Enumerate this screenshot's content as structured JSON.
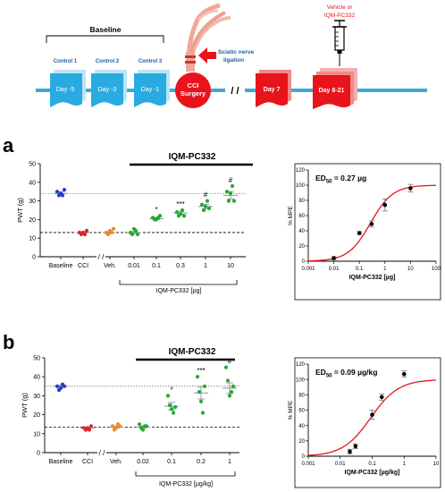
{
  "timeline": {
    "baseline_label": "Baseline",
    "controls": [
      "Control 1",
      "Control 2",
      "Control 3"
    ],
    "days": [
      "Day -5",
      "Day -3",
      "Day -1"
    ],
    "cci_label_1": "CCI",
    "cci_label_2": "Surgery",
    "nerve_label_1": "Sciatic nerve",
    "nerve_label_2": "ligation",
    "break_label": "/ /",
    "day7": "Day 7",
    "day821": "Day 8-21",
    "vehicle_label_1": "Vehicle or",
    "vehicle_label_2": "IQM-PC332",
    "colors": {
      "blue": "#29abe2",
      "red": "#e8141c",
      "line": "#3fa9d6",
      "text_blue": "#1f5fa0"
    }
  },
  "panels": [
    {
      "letter": "a",
      "drug_label": "IQM-PC332",
      "xgroup_label": "IQM-PC332 [µg]"
    },
    {
      "letter": "b",
      "drug_label": "IQM-PC332",
      "xgroup_label": "IQM-PC332 [µg/kg]"
    }
  ],
  "chart_data": [
    {
      "type": "scatter",
      "panel": "a",
      "ylabel": "PWT (g)",
      "ylim": [
        0,
        50
      ],
      "yticks": [
        "0",
        "10",
        "20",
        "30",
        "40",
        "50"
      ],
      "categories": [
        "Baseline",
        "CCI",
        "Veh.",
        "0.01",
        "0.1",
        "0.3",
        "1",
        "10"
      ],
      "axis_break_label": "/ /",
      "ref_lines": {
        "baseline_dotted": 34,
        "cci_dashed": 13
      },
      "colors": [
        "#1f3fd1",
        "#d9262b",
        "#f08a24",
        "#22aa33",
        "#22aa33",
        "#22aa33",
        "#22aa33",
        "#22aa33"
      ],
      "points": [
        [
          35,
          33,
          34,
          33,
          36
        ],
        [
          13,
          12,
          13,
          12,
          14
        ],
        [
          13,
          12,
          14,
          13,
          15
        ],
        [
          13,
          12,
          15,
          14,
          12
        ],
        [
          21,
          20,
          20,
          21,
          22
        ],
        [
          24,
          22,
          23,
          25,
          22
        ],
        [
          28,
          25,
          27,
          30,
          26
        ],
        [
          35,
          30,
          34,
          38,
          30
        ]
      ],
      "means": [
        34,
        13,
        13,
        13,
        20.5,
        23.5,
        27,
        33
      ],
      "errors": [
        1,
        0.5,
        0.5,
        0.6,
        0.6,
        0.8,
        1.2,
        2
      ],
      "significance": [
        "",
        "",
        "",
        "",
        "*",
        "***",
        "#",
        "#"
      ]
    },
    {
      "type": "line",
      "panel": "a",
      "annotation_prefix": "ED",
      "annotation_sub": "50",
      "annotation_value": " = 0.27 µg",
      "xlabel": "IQM-PC332 [µg]",
      "ylabel": "% MPE",
      "xscale": "log",
      "xlim": [
        0.001,
        100
      ],
      "xticks": [
        "0.001",
        "0.01",
        "0.1",
        "1",
        "10",
        "100"
      ],
      "ylim": [
        0,
        120
      ],
      "yticks": [
        "0",
        "20",
        "40",
        "60",
        "80",
        "100",
        "120"
      ],
      "ed50": 0.27,
      "top": 100,
      "x": [
        0.01,
        0.1,
        0.3,
        1,
        10
      ],
      "y": [
        4,
        37,
        49,
        74,
        96
      ],
      "err": [
        2,
        2,
        4,
        8,
        5
      ],
      "curve_color": "#e8141c"
    },
    {
      "type": "scatter",
      "panel": "b",
      "ylabel": "PWT (g)",
      "ylim": [
        0,
        50
      ],
      "yticks": [
        "0",
        "10",
        "20",
        "30",
        "40",
        "50"
      ],
      "categories": [
        "Baseline",
        "CCI",
        "Veh.",
        "0.02",
        "0.1",
        "0.2",
        "1"
      ],
      "axis_break_label": "/ /",
      "ref_lines": {
        "baseline_dotted": 35,
        "cci_dashed": 13.5
      },
      "colors": [
        "#1f3fd1",
        "#d9262b",
        "#f08a24",
        "#22aa33",
        "#22aa33",
        "#22aa33",
        "#22aa33"
      ],
      "points": [
        [
          35,
          33,
          34,
          36,
          35
        ],
        [
          13,
          12,
          13,
          12,
          14
        ],
        [
          14,
          12,
          13,
          15,
          14
        ],
        [
          15,
          13,
          12,
          14,
          14
        ],
        [
          30,
          25,
          23,
          21,
          24
        ],
        [
          40,
          32,
          27,
          21,
          35
        ],
        [
          45,
          38,
          30,
          32,
          35
        ]
      ],
      "means": [
        35,
        13,
        13.5,
        13.5,
        24.5,
        31.5,
        34
      ],
      "errors": [
        0.6,
        0.5,
        0.6,
        0.6,
        2,
        3.2,
        2.8
      ],
      "significance": [
        "",
        "",
        "",
        "",
        "*",
        "***",
        "#"
      ]
    },
    {
      "type": "line",
      "panel": "b",
      "annotation_prefix": "ED",
      "annotation_sub": "50",
      "annotation_value": " = 0.09 µg/kg",
      "xlabel": "IQM-PC332 [µg/kg]",
      "ylabel": "% MPE",
      "xscale": "log",
      "xlim": [
        0.001,
        10
      ],
      "xticks": [
        "0.001",
        "0.01",
        "0.1",
        "1",
        "10"
      ],
      "ylim": [
        0,
        120
      ],
      "yticks": [
        "0",
        "20",
        "40",
        "60",
        "80",
        "100",
        "120"
      ],
      "ed50": 0.09,
      "top": 100,
      "x": [
        0.02,
        0.03,
        0.1,
        0.2,
        1
      ],
      "y": [
        6,
        13,
        54,
        77,
        107
      ],
      "err": [
        3,
        3,
        6,
        4,
        4
      ],
      "curve_color": "#e8141c"
    }
  ]
}
